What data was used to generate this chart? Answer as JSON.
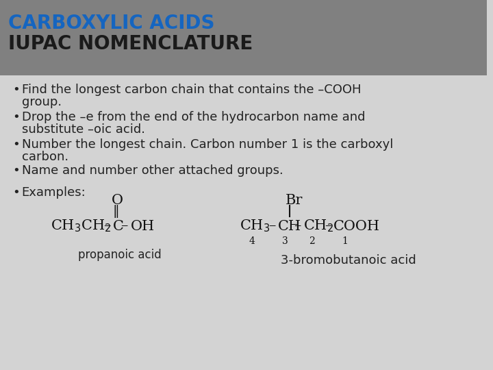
{
  "title_line1": "CARBOXYLIC ACIDS",
  "title_line2": "IUPAC NOMENCLATURE",
  "title_color": "#1565C0",
  "title2_color": "#1a1a1a",
  "header_bg": "#808080",
  "body_bg": "#d3d3d3",
  "bullet_points": [
    "Find the longest carbon chain that contains the –COOH\ngroup.",
    "Drop the –e from the end of the hydrocarbon name and\nsubstitute –oic acid.",
    "Number the longest chain. Carbon number 1 is the carboxyl\ncarbon.",
    "Name and number other attached groups."
  ],
  "examples_label": "Examples:",
  "propanoic_label": "propanoic acid",
  "bromobutanoic_label": "3-bromobutanoic acid",
  "font_size_title": 20,
  "font_size_body": 13,
  "font_size_chem": 14,
  "font_size_small": 10
}
